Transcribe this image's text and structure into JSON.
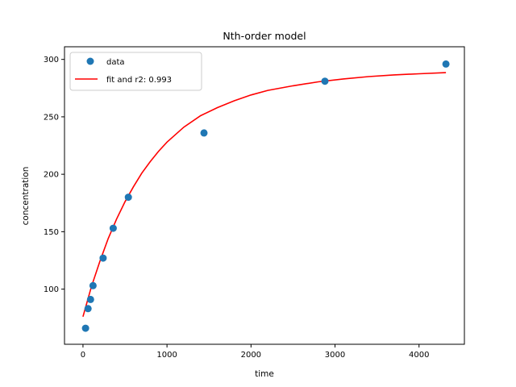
{
  "chart_data": {
    "type": "scatter",
    "title": "Nth-order model",
    "xlabel": "time",
    "ylabel": "concentration",
    "xlim": [
      -220,
      4540
    ],
    "ylim": [
      52,
      311
    ],
    "xticks": [
      0,
      1000,
      2000,
      3000,
      4000
    ],
    "yticks": [
      100,
      150,
      200,
      250,
      300
    ],
    "grid": false,
    "legend_position": "upper-left",
    "series": [
      {
        "name": "data",
        "kind": "scatter",
        "color": "#1f77b4",
        "x": [
          30,
          60,
          90,
          120,
          240,
          360,
          540,
          1440,
          2880,
          4320
        ],
        "y": [
          66,
          83,
          91,
          103,
          127,
          153,
          180,
          236,
          281,
          296
        ]
      },
      {
        "name": "fit and r2: 0.993",
        "kind": "line",
        "color": "#ff0000",
        "x": [
          0,
          100,
          200,
          300,
          400,
          500,
          600,
          700,
          800,
          900,
          1000,
          1200,
          1400,
          1600,
          1800,
          2000,
          2200,
          2500,
          2800,
          3100,
          3400,
          3700,
          4000,
          4320
        ],
        "y": [
          76,
          102,
          124,
          144,
          161,
          176,
          189,
          201,
          211,
          220,
          228,
          241,
          251,
          258,
          264,
          269,
          273,
          277,
          280.5,
          283,
          285,
          286.5,
          287.5,
          288.5
        ]
      }
    ]
  }
}
